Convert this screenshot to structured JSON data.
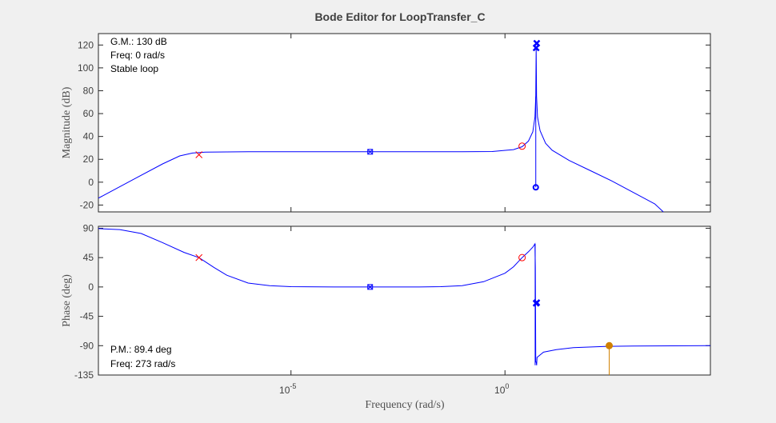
{
  "chart_data": {
    "type": "line",
    "title": "Bode Editor for LoopTransfer_C",
    "xlabel": "Frequency (rad/s)",
    "xscale": "log",
    "xlim_exp": [
      -9.5,
      4.8
    ],
    "x_ticks": [
      {
        "base": "10",
        "exp": "-5",
        "value": 1e-05
      },
      {
        "base": "10",
        "exp": "0",
        "value": 1
      }
    ],
    "grid": false,
    "colors": {
      "response": "#0000ff",
      "compensator": "#ff0000",
      "margin": "#d08000",
      "background": "#f0f0f0",
      "axes_text": "#404040"
    },
    "magnitude": {
      "ylabel": "Magnitude (dB)",
      "ylim": [
        -26,
        130
      ],
      "yticks": [
        120,
        100,
        80,
        60,
        40,
        20,
        0,
        -20
      ],
      "ytick_labels": [
        "120",
        "100",
        "80",
        "60",
        "40",
        "20",
        "0",
        "-20"
      ],
      "annotations": [
        "G.M.: 130 dB",
        "Freq: 0 rad/s",
        "Stable loop"
      ],
      "curve": [
        [
          -9.5,
          -14
        ],
        [
          -8.6,
          4
        ],
        [
          -8.0,
          16
        ],
        [
          -7.6,
          23
        ],
        [
          -7.3,
          25.5
        ],
        [
          -7.0,
          26.3
        ],
        [
          -6.0,
          26.6
        ],
        [
          -5.0,
          26.6
        ],
        [
          -4.0,
          26.6
        ],
        [
          -3.0,
          26.6
        ],
        [
          -2.0,
          26.6
        ],
        [
          -1.0,
          26.6
        ],
        [
          -0.3,
          26.8
        ],
        [
          0.2,
          28.5
        ],
        [
          0.4,
          31
        ],
        [
          0.55,
          36
        ],
        [
          0.65,
          44
        ],
        [
          0.7,
          57
        ],
        [
          0.72,
          75
        ],
        [
          0.729,
          118
        ],
        [
          0.738,
          75
        ],
        [
          0.76,
          57
        ],
        [
          0.82,
          45
        ],
        [
          0.95,
          34
        ],
        [
          1.1,
          28
        ],
        [
          1.5,
          19
        ],
        [
          2.0,
          10
        ],
        [
          2.5,
          1
        ],
        [
          3.0,
          -9
        ],
        [
          3.5,
          -19
        ],
        [
          3.7,
          -26
        ]
      ],
      "markers": [
        {
          "type": "pole",
          "color": "red",
          "x": -7.15,
          "y": 24
        },
        {
          "type": "zero-pole",
          "color": "blue",
          "x": -3.15,
          "y": 26.6
        },
        {
          "type": "zero",
          "color": "red",
          "x": 0.4,
          "y": 31.5
        },
        {
          "type": "pole-pair",
          "color": "blue",
          "x": 0.728,
          "y": 117.5
        },
        {
          "type": "pole-pair",
          "color": "blue",
          "x": 0.742,
          "y": 121.5
        },
        {
          "type": "zero",
          "color": "blue",
          "x": 0.72,
          "y": -4.5
        }
      ]
    },
    "phase": {
      "ylabel": "Phase (deg)",
      "ylim": [
        -135,
        93
      ],
      "yticks": [
        90,
        45,
        0,
        -45,
        -90,
        -135
      ],
      "ytick_labels": [
        "90",
        "45",
        "0",
        "-45",
        "-90",
        "-135"
      ],
      "annotations": [
        "P.M.: 89.4 deg",
        "Freq: 273 rad/s"
      ],
      "curve": [
        [
          -9.5,
          89.5
        ],
        [
          -9.0,
          88
        ],
        [
          -8.5,
          82
        ],
        [
          -8.0,
          68
        ],
        [
          -7.5,
          53
        ],
        [
          -7.15,
          45
        ],
        [
          -6.8,
          30
        ],
        [
          -6.5,
          18
        ],
        [
          -6.0,
          6
        ],
        [
          -5.5,
          2
        ],
        [
          -5.0,
          0.5
        ],
        [
          -4.0,
          0
        ],
        [
          -3.0,
          0
        ],
        [
          -2.0,
          0
        ],
        [
          -1.5,
          0.5
        ],
        [
          -1.0,
          2
        ],
        [
          -0.5,
          8
        ],
        [
          0.0,
          21
        ],
        [
          0.2,
          31
        ],
        [
          0.4,
          45
        ],
        [
          0.55,
          54
        ],
        [
          0.65,
          61
        ],
        [
          0.7,
          66
        ],
        [
          0.71,
          30
        ],
        [
          0.72,
          -115
        ],
        [
          0.73,
          -115
        ],
        [
          0.74,
          -120
        ],
        [
          0.75,
          -108
        ],
        [
          0.9,
          -100
        ],
        [
          1.2,
          -96
        ],
        [
          1.6,
          -93
        ],
        [
          2.4,
          -91
        ],
        [
          3.0,
          -90.5
        ],
        [
          4.8,
          -90
        ]
      ],
      "vline": {
        "x": 0.705,
        "y_top": 66,
        "y_bottom": -120
      },
      "markers": [
        {
          "type": "pole",
          "color": "red",
          "x": -7.15,
          "y": 45
        },
        {
          "type": "zero-pole",
          "color": "blue",
          "x": -3.15,
          "y": 0
        },
        {
          "type": "zero",
          "color": "red",
          "x": 0.4,
          "y": 45
        },
        {
          "type": "pole-pair",
          "color": "blue",
          "x": 0.728,
          "y": -25
        },
        {
          "type": "pole-pair",
          "color": "blue",
          "x": 0.742,
          "y": -24
        },
        {
          "type": "margin",
          "color": "orange",
          "x": 2.436,
          "y": -90
        }
      ]
    }
  }
}
